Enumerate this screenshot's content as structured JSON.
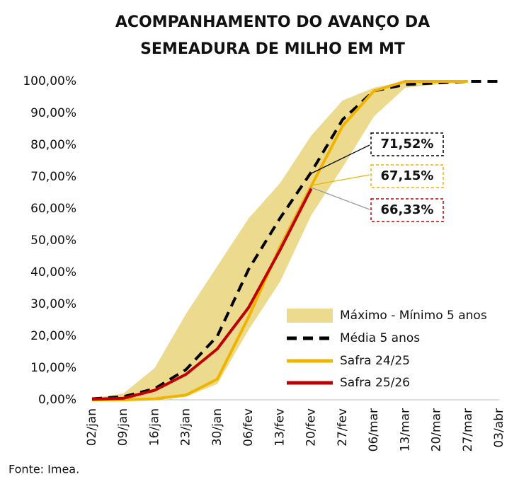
{
  "chart_data": {
    "type": "line",
    "title": [
      "ACOMPANHAMENTO DO AVANÇO DA",
      "SEMEADURA DE MILHO EM MT"
    ],
    "source": "Fonte: Imea.",
    "categories": [
      "02/jan",
      "09/jan",
      "16/jan",
      "23/jan",
      "30/jan",
      "06/fev",
      "13/fev",
      "20/fev",
      "27/fev",
      "06/mar",
      "13/mar",
      "20/mar",
      "27/mar",
      "03/abr"
    ],
    "ylim": [
      0,
      100
    ],
    "yticks": [
      {
        "value": 0,
        "label": "0,00%"
      },
      {
        "value": 10,
        "label": "10,00%"
      },
      {
        "value": 20,
        "label": "20,00%"
      },
      {
        "value": 30,
        "label": "30,00%"
      },
      {
        "value": 40,
        "label": "40,00%"
      },
      {
        "value": 50,
        "label": "50,00%"
      },
      {
        "value": 60,
        "label": "60,00%"
      },
      {
        "value": 70,
        "label": "70,00%"
      },
      {
        "value": 80,
        "label": "80,00%"
      },
      {
        "value": 90,
        "label": "90,00%"
      },
      {
        "value": 100,
        "label": "100,00%"
      }
    ],
    "band": {
      "name": "Máximo - Mínimo 5 anos",
      "color": "#ecdb8e",
      "upper": [
        0.5,
        2,
        10,
        27,
        42,
        57,
        68,
        83,
        94,
        98,
        100,
        100,
        100,
        100
      ],
      "lower": [
        0,
        0,
        0,
        1,
        5,
        22,
        37,
        58,
        73,
        89,
        98,
        99,
        100,
        100
      ]
    },
    "series": [
      {
        "name": "Média 5 anos",
        "color": "#000000",
        "dash": true,
        "values": [
          0.3,
          1,
          3.5,
          9.5,
          20,
          41,
          57,
          71.52,
          88,
          97,
          99,
          99.5,
          100,
          100
        ],
        "value_labels": [
          null,
          null,
          null,
          null,
          null,
          null,
          null,
          "71,52%",
          null,
          null,
          null,
          null,
          null,
          null
        ]
      },
      {
        "name": "Safra 24/25",
        "color": "#f0b400",
        "dash": false,
        "values": [
          0,
          0,
          0.3,
          1.5,
          6.5,
          26,
          48,
          67.15,
          86,
          97,
          100,
          100,
          100,
          null
        ],
        "value_labels": [
          null,
          null,
          null,
          null,
          null,
          null,
          null,
          "67,15%",
          null,
          null,
          null,
          null,
          null,
          null
        ]
      },
      {
        "name": "Safra 25/26",
        "color": "#c00000",
        "dash": false,
        "values": [
          0.2,
          0.5,
          3,
          8,
          16,
          29,
          47,
          66.33,
          null,
          null,
          null,
          null,
          null,
          null
        ],
        "value_labels": [
          null,
          null,
          null,
          null,
          null,
          null,
          null,
          "66,33%",
          null,
          null,
          null,
          null,
          null,
          null
        ]
      }
    ],
    "legend": "lower-right"
  }
}
